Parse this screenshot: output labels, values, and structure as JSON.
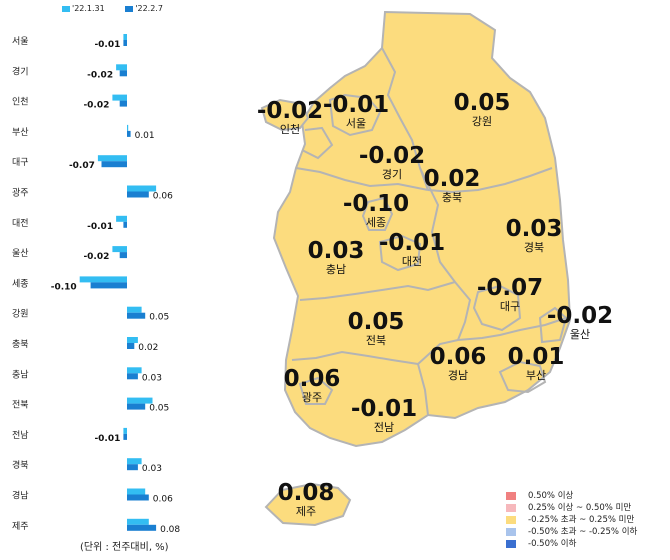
{
  "legend": [
    {
      "label": "'22.1.31",
      "color": "#33bdf2"
    },
    {
      "label": "'22.2.7",
      "color": "#1a7fd1"
    }
  ],
  "unit_note": "(단위 : 전주대비, %)",
  "chart_data": {
    "type": "bar",
    "orientation": "horizontal",
    "categories": [
      "서울",
      "경기",
      "인천",
      "부산",
      "대구",
      "광주",
      "대전",
      "울산",
      "세종",
      "강원",
      "충북",
      "충남",
      "전북",
      "전남",
      "경북",
      "경남",
      "제주"
    ],
    "series": [
      {
        "name": "'22.1.31",
        "color": "#33bdf2",
        "values": [
          -0.01,
          -0.03,
          -0.04,
          0.0,
          -0.08,
          0.08,
          -0.03,
          -0.04,
          -0.13,
          0.04,
          0.03,
          0.04,
          0.07,
          -0.01,
          0.04,
          0.05,
          0.06
        ]
      },
      {
        "name": "'22.2.7",
        "color": "#1a7fd1",
        "values": [
          -0.01,
          -0.02,
          -0.02,
          0.01,
          -0.07,
          0.06,
          -0.01,
          -0.02,
          -0.1,
          0.05,
          0.02,
          0.03,
          0.05,
          -0.01,
          0.03,
          0.06,
          0.08
        ]
      }
    ],
    "data_labels": [
      "-0.01",
      "-0.02",
      "-0.02",
      "0.01",
      "-0.07",
      "0.06",
      "-0.01",
      "-0.02",
      "-0.10",
      "0.05",
      "0.02",
      "0.03",
      "0.05",
      "-0.01",
      "0.03",
      "0.06",
      "0.08"
    ],
    "grid": false,
    "legend_position": "top"
  },
  "map_regions": [
    {
      "name": "인천",
      "value": "-0.02"
    },
    {
      "name": "서울",
      "value": "-0.01"
    },
    {
      "name": "강원",
      "value": "0.05"
    },
    {
      "name": "경기",
      "value": "-0.02"
    },
    {
      "name": "충북",
      "value": "0.02"
    },
    {
      "name": "세종",
      "value": "-0.10"
    },
    {
      "name": "경북",
      "value": "0.03"
    },
    {
      "name": "충남",
      "value": "0.03"
    },
    {
      "name": "대전",
      "value": "-0.01"
    },
    {
      "name": "대구",
      "value": "-0.07"
    },
    {
      "name": "울산",
      "value": "-0.02"
    },
    {
      "name": "전북",
      "value": "0.05"
    },
    {
      "name": "경남",
      "value": "0.06"
    },
    {
      "name": "부산",
      "value": "0.01"
    },
    {
      "name": "광주",
      "value": "0.06"
    },
    {
      "name": "전남",
      "value": "-0.01"
    },
    {
      "name": "제주",
      "value": "0.08"
    }
  ],
  "map_color": "#fcdc7e",
  "map_border_color": "#b4b4b4",
  "band_legend": [
    {
      "label": "0.50% 이상",
      "color": "#f08080"
    },
    {
      "label": "0.25% 이상 ~ 0.50% 미만",
      "color": "#f6b8bc"
    },
    {
      "label": "-0.25% 초과 ~ 0.25% 미만",
      "color": "#fcdc7e"
    },
    {
      "label": "-0.50% 초과 ~ -0.25% 이하",
      "color": "#a9c4ec"
    },
    {
      "label": "-0.50% 이하",
      "color": "#3a6fd0"
    }
  ]
}
